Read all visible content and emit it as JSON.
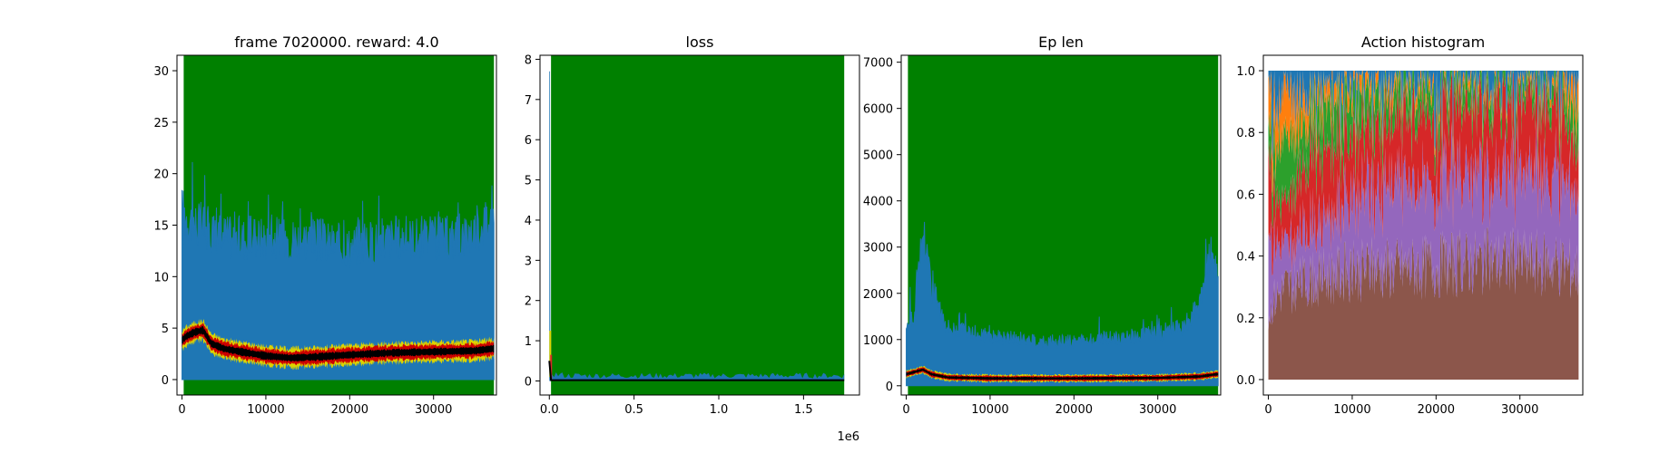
{
  "colors": {
    "green": "#008000",
    "blue": "#1f77b4",
    "orange": "#ff7f0e",
    "tab_green": "#2ca02c",
    "red": "#d62728",
    "purple": "#9467bd",
    "brown": "#8c564b",
    "yellow": "#dcd300",
    "dark_red": "#cc0000",
    "black": "#000000"
  },
  "chart_data": [
    {
      "type": "area",
      "title": "frame 7020000. reward: 4.0",
      "xlim": [
        -600,
        37500
      ],
      "ylim": [
        -1.5,
        31.5
      ],
      "xticks": [
        0,
        10000,
        20000,
        30000
      ],
      "yticks": [
        0,
        5,
        10,
        15,
        20,
        25,
        30
      ],
      "xtick_labels": [
        "0",
        "10000",
        "20000",
        "30000"
      ],
      "ytick_labels": [
        "0",
        "5",
        "10",
        "15",
        "20",
        "25",
        "30"
      ],
      "green_band": [
        200,
        37200
      ],
      "series": [
        {
          "role": "max",
          "color": "green",
          "x": [
            200,
            37200
          ],
          "y": [
            31.5,
            31.5
          ]
        },
        {
          "role": "spread",
          "color": "blue",
          "x": [
            0,
            1000,
            3000,
            6000,
            10000,
            15000,
            20000,
            25000,
            30000,
            33000,
            35000,
            36500,
            37200
          ],
          "y": [
            19,
            18,
            17,
            16,
            16,
            16,
            15,
            16,
            16,
            16,
            17,
            18,
            18
          ]
        },
        {
          "role": "mean",
          "color": "black",
          "x": [
            0,
            500,
            1500,
            2500,
            3500,
            5000,
            7000,
            10000,
            13000,
            16000,
            20000,
            25000,
            30000,
            35000,
            37000
          ],
          "y": [
            3.8,
            4.2,
            4.6,
            4.8,
            3.5,
            3.0,
            2.7,
            2.3,
            2.1,
            2.2,
            2.4,
            2.6,
            2.7,
            2.8,
            3.0
          ]
        }
      ]
    },
    {
      "type": "line",
      "title": "loss",
      "xlim": [
        -55000,
        1830000
      ],
      "ylim": [
        -0.35,
        8.1
      ],
      "xticks": [
        0,
        500000,
        1000000,
        1500000
      ],
      "yticks": [
        0,
        1,
        2,
        3,
        4,
        5,
        6,
        7,
        8
      ],
      "xtick_labels": [
        "0.0",
        "0.5",
        "1.0",
        "1.5"
      ],
      "ytick_labels": [
        "0",
        "1",
        "2",
        "3",
        "4",
        "5",
        "6",
        "7",
        "8"
      ],
      "offset_label": "1e6",
      "green_band": [
        10000,
        1740000
      ],
      "series": [
        {
          "role": "max",
          "color": "green",
          "x": [
            10000,
            1740000
          ],
          "y": [
            8.1,
            8.1
          ]
        },
        {
          "role": "spread",
          "color": "blue",
          "x": [
            0,
            5000,
            15000,
            30000,
            100000,
            500000,
            1000000,
            1500000,
            1740000
          ],
          "y": [
            7.7,
            1.0,
            0.2,
            0.15,
            0.12,
            0.12,
            0.12,
            0.12,
            0.12
          ]
        },
        {
          "role": "mean",
          "color": "black",
          "x": [
            0,
            10000,
            50000,
            1740000
          ],
          "y": [
            0.5,
            0.02,
            0.02,
            0.02
          ]
        }
      ]
    },
    {
      "type": "area",
      "title": "Ep len",
      "xlim": [
        -600,
        37500
      ],
      "ylim": [
        -200,
        7150
      ],
      "xticks": [
        0,
        10000,
        20000,
        30000
      ],
      "yticks": [
        0,
        1000,
        2000,
        3000,
        4000,
        5000,
        6000,
        7000
      ],
      "xtick_labels": [
        "0",
        "10000",
        "20000",
        "30000"
      ],
      "ytick_labels": [
        "0",
        "1000",
        "2000",
        "3000",
        "4000",
        "5000",
        "6000",
        "7000"
      ],
      "green_band": [
        200,
        37200
      ],
      "series": [
        {
          "role": "max",
          "color": "green",
          "x": [
            200,
            37200
          ],
          "y": [
            7150,
            7150
          ]
        },
        {
          "role": "spread",
          "color": "blue",
          "x": [
            0,
            1000,
            2000,
            3000,
            5000,
            8000,
            12000,
            18000,
            24000,
            30000,
            33000,
            35000,
            36500,
            37200
          ],
          "y": [
            1500,
            1800,
            4000,
            2500,
            1500,
            1300,
            1200,
            1100,
            1200,
            1300,
            1500,
            2000,
            3500,
            2500
          ]
        },
        {
          "role": "mean",
          "color": "black",
          "x": [
            0,
            1000,
            2000,
            3000,
            5000,
            10000,
            20000,
            30000,
            35000,
            37000
          ],
          "y": [
            250,
            300,
            350,
            250,
            180,
            160,
            160,
            170,
            200,
            250
          ]
        }
      ]
    },
    {
      "type": "area",
      "title": "Action histogram",
      "xlim": [
        -600,
        37500
      ],
      "ylim": [
        -0.05,
        1.05
      ],
      "xticks": [
        0,
        10000,
        20000,
        30000
      ],
      "yticks": [
        0.0,
        0.2,
        0.4,
        0.6,
        0.8,
        1.0
      ],
      "xtick_labels": [
        "0",
        "10000",
        "20000",
        "30000"
      ],
      "ytick_labels": [
        "0.0",
        "0.2",
        "0.4",
        "0.6",
        "0.8",
        "1.0"
      ],
      "x": [
        0,
        500,
        1000,
        2000,
        3000,
        5000,
        8000,
        12000,
        16000,
        20000,
        25000,
        30000,
        34000,
        36000,
        37000
      ],
      "series": [
        {
          "color": "brown",
          "values": [
            0.2,
            0.25,
            0.27,
            0.3,
            0.3,
            0.32,
            0.34,
            0.36,
            0.36,
            0.37,
            0.38,
            0.38,
            0.38,
            0.36,
            0.35
          ]
        },
        {
          "color": "purple",
          "values": [
            0.25,
            0.2,
            0.18,
            0.12,
            0.15,
            0.17,
            0.2,
            0.24,
            0.27,
            0.28,
            0.28,
            0.29,
            0.29,
            0.27,
            0.25
          ]
        },
        {
          "color": "red",
          "values": [
            0.25,
            0.2,
            0.15,
            0.12,
            0.18,
            0.23,
            0.22,
            0.2,
            0.21,
            0.22,
            0.22,
            0.24,
            0.22,
            0.18,
            0.15
          ]
        },
        {
          "color": "tab_green",
          "values": [
            0.12,
            0.13,
            0.2,
            0.2,
            0.17,
            0.14,
            0.14,
            0.12,
            0.1,
            0.08,
            0.08,
            0.06,
            0.07,
            0.09,
            0.1
          ]
        },
        {
          "color": "orange",
          "values": [
            0.13,
            0.15,
            0.12,
            0.18,
            0.12,
            0.08,
            0.06,
            0.05,
            0.04,
            0.03,
            0.03,
            0.02,
            0.03,
            0.08,
            0.12
          ]
        },
        {
          "color": "blue",
          "values": [
            0.05,
            0.07,
            0.08,
            0.08,
            0.08,
            0.06,
            0.04,
            0.03,
            0.02,
            0.02,
            0.01,
            0.01,
            0.01,
            0.02,
            0.03
          ]
        }
      ]
    }
  ]
}
